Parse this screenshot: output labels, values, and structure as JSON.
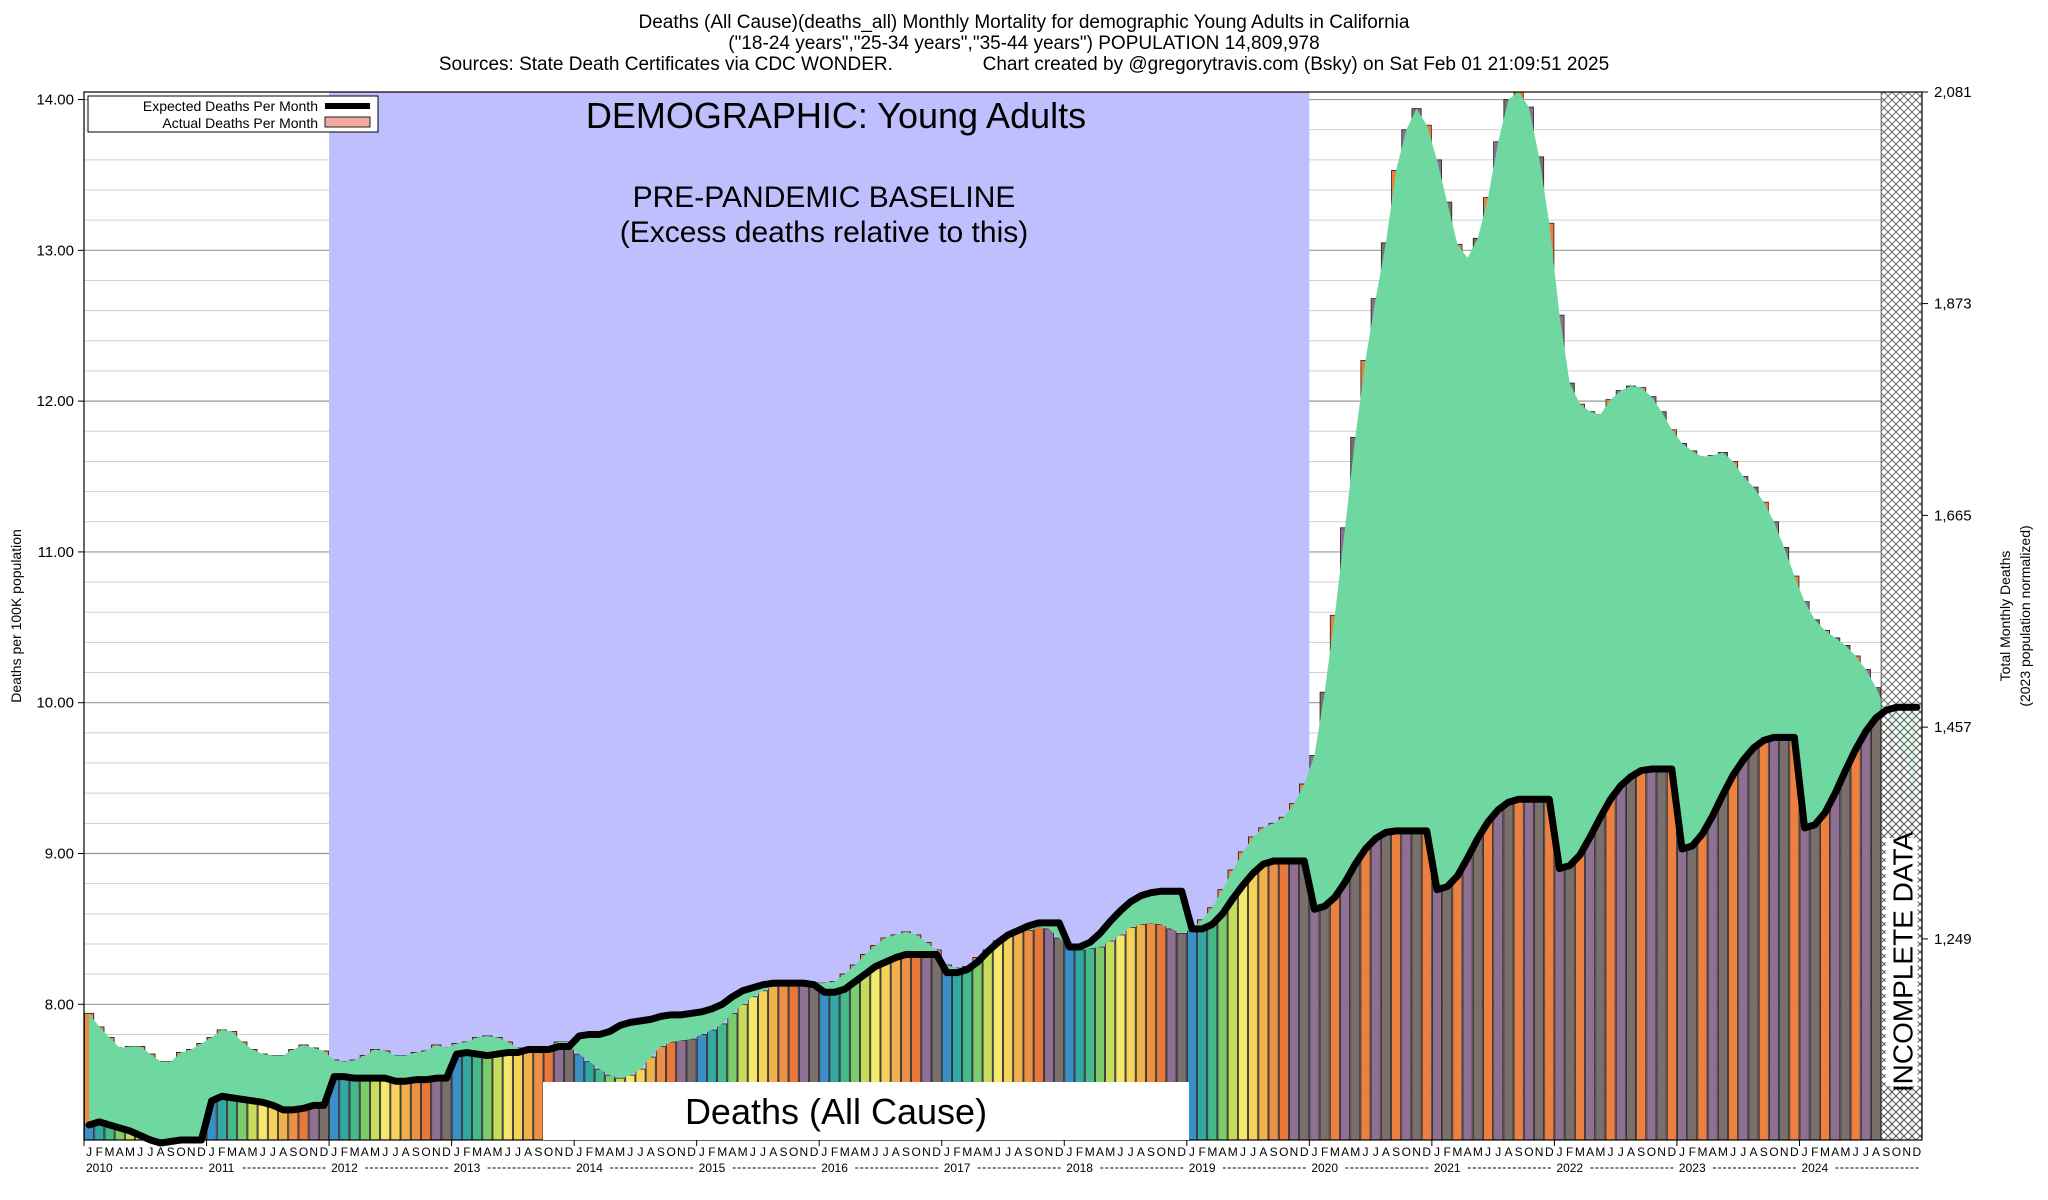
{
  "header": {
    "line1": "Deaths (All Cause)(deaths_all) Monthly Mortality for demographic Young Adults in California",
    "line2": "(\"18-24 years\",\"25-34 years\",\"35-44 years\") POPULATION 14,809,978",
    "line3": "Sources: State Death Certificates via CDC WONDER.                 Chart created by @gregorytravis.com (Bsky) on Sat Feb 01 21:09:51 2025"
  },
  "chart_data": {
    "type": "bar",
    "title": "Deaths (All Cause)(deaths_all) Monthly Mortality for demographic Young Adults in California",
    "ylabel": "Deaths per 100K population",
    "y2label": "Total Monthly Deaths",
    "y2sublabel": "(2023 population normalized)",
    "ylim": [
      7.1,
      14.05
    ],
    "yticks": [
      "8.00",
      "9.00",
      "10.00",
      "11.00",
      "12.00",
      "13.00",
      "14.00"
    ],
    "y2ticks": [
      "1,249",
      "1,457",
      "1,665",
      "1,873",
      "2,081"
    ],
    "years": [
      "2010",
      "2011",
      "2012",
      "2013",
      "2014",
      "2015",
      "2016",
      "2017",
      "2018",
      "2019",
      "2020",
      "2021",
      "2022",
      "2023",
      "2024"
    ],
    "month_labels": [
      "J",
      "F",
      "M",
      "A",
      "M",
      "J",
      "J",
      "A",
      "S",
      "O",
      "N",
      "D"
    ],
    "series": [
      {
        "name": "Actual Deaths Per Month",
        "values": [
          7.94,
          7.85,
          7.78,
          7.71,
          7.72,
          7.72,
          7.67,
          7.62,
          7.62,
          7.68,
          7.7,
          7.74,
          7.78,
          7.83,
          7.82,
          7.75,
          7.7,
          7.67,
          7.66,
          7.66,
          7.7,
          7.73,
          7.71,
          7.69,
          7.63,
          7.62,
          7.63,
          7.66,
          7.7,
          7.69,
          7.66,
          7.66,
          7.68,
          7.69,
          7.73,
          7.71,
          7.74,
          7.75,
          7.78,
          7.79,
          7.78,
          7.75,
          7.71,
          7.69,
          7.7,
          7.72,
          7.75,
          7.75,
          7.67,
          7.62,
          7.57,
          7.53,
          7.51,
          7.53,
          7.57,
          7.65,
          7.72,
          7.75,
          7.76,
          7.77,
          7.8,
          7.83,
          7.87,
          7.94,
          8.0,
          8.05,
          8.09,
          8.12,
          8.14,
          8.15,
          8.15,
          8.14,
          8.14,
          8.15,
          8.2,
          8.26,
          8.33,
          8.39,
          8.44,
          8.46,
          8.48,
          8.46,
          8.41,
          8.36,
          8.26,
          8.24,
          8.25,
          8.31,
          8.36,
          8.42,
          8.46,
          8.48,
          8.49,
          8.51,
          8.5,
          8.44,
          8.4,
          8.36,
          8.37,
          8.38,
          8.42,
          8.46,
          8.51,
          8.53,
          8.54,
          8.53,
          8.5,
          8.47,
          8.5,
          8.56,
          8.64,
          8.76,
          8.89,
          9.01,
          9.11,
          9.17,
          9.2,
          9.24,
          9.33,
          9.46,
          9.65,
          10.07,
          10.58,
          11.16,
          11.76,
          12.27,
          12.68,
          13.05,
          13.53,
          13.8,
          13.94,
          13.83,
          13.6,
          13.32,
          13.04,
          12.95,
          13.08,
          13.35,
          13.72,
          14.0,
          14.12,
          13.95,
          13.62,
          13.18,
          12.57,
          12.12,
          11.98,
          11.93,
          11.91,
          12.01,
          12.07,
          12.1,
          12.09,
          12.03,
          11.93,
          11.81,
          11.72,
          11.67,
          11.63,
          11.64,
          11.66,
          11.6,
          11.5,
          11.43,
          11.33,
          11.2,
          11.03,
          10.84,
          10.67,
          10.55,
          10.48,
          10.43,
          10.38,
          10.31,
          10.22,
          10.1,
          9.95,
          9.79,
          9.58,
          9.3
        ]
      },
      {
        "name": "Expected Deaths Per Month",
        "values": [
          7.2,
          7.22,
          7.2,
          7.18,
          7.16,
          7.13,
          7.1,
          7.08,
          7.09,
          7.1,
          7.1,
          7.1,
          7.36,
          7.39,
          7.38,
          7.37,
          7.36,
          7.35,
          7.33,
          7.3,
          7.3,
          7.31,
          7.33,
          7.33,
          7.52,
          7.52,
          7.51,
          7.51,
          7.51,
          7.51,
          7.49,
          7.49,
          7.5,
          7.5,
          7.51,
          7.51,
          7.67,
          7.68,
          7.67,
          7.66,
          7.67,
          7.68,
          7.68,
          7.7,
          7.7,
          7.7,
          7.72,
          7.72,
          7.79,
          7.8,
          7.8,
          7.82,
          7.86,
          7.88,
          7.89,
          7.9,
          7.92,
          7.93,
          7.93,
          7.94,
          7.95,
          7.97,
          8.0,
          8.05,
          8.09,
          8.11,
          8.13,
          8.14,
          8.14,
          8.14,
          8.14,
          8.13,
          8.08,
          8.08,
          8.1,
          8.15,
          8.2,
          8.25,
          8.28,
          8.31,
          8.33,
          8.33,
          8.33,
          8.33,
          8.21,
          8.21,
          8.23,
          8.28,
          8.35,
          8.41,
          8.46,
          8.49,
          8.52,
          8.54,
          8.54,
          8.54,
          8.38,
          8.38,
          8.41,
          8.47,
          8.55,
          8.62,
          8.68,
          8.72,
          8.74,
          8.75,
          8.75,
          8.75,
          8.5,
          8.5,
          8.53,
          8.6,
          8.7,
          8.79,
          8.87,
          8.93,
          8.95,
          8.95,
          8.95,
          8.95,
          8.63,
          8.65,
          8.71,
          8.81,
          8.93,
          9.03,
          9.1,
          9.14,
          9.15,
          9.15,
          9.15,
          9.15,
          8.76,
          8.78,
          8.85,
          8.97,
          9.1,
          9.21,
          9.29,
          9.34,
          9.36,
          9.36,
          9.36,
          9.36,
          8.9,
          8.92,
          8.99,
          9.11,
          9.24,
          9.36,
          9.45,
          9.51,
          9.55,
          9.56,
          9.56,
          9.56,
          9.03,
          9.05,
          9.13,
          9.25,
          9.39,
          9.52,
          9.62,
          9.7,
          9.75,
          9.77,
          9.77,
          9.77,
          9.17,
          9.19,
          9.27,
          9.4,
          9.55,
          9.69,
          9.81,
          9.9,
          9.95,
          9.97,
          9.97,
          9.97
        ]
      }
    ],
    "incomplete_months": 4,
    "legend": [
      "Expected Deaths Per Month",
      "Actual Deaths Per Month"
    ],
    "legend_position": "top-left",
    "annotations": {
      "demographic": "DEMOGRAPHIC: Young Adults",
      "baseline_line1": "PRE-PANDEMIC BASELINE",
      "baseline_line2": "(Excess deaths relative to this)",
      "deaths_label": "Deaths (All Cause)",
      "incomplete": "INCOMPLETE DATA"
    },
    "colors": {
      "baseline_band": "#bfbffd",
      "expected_line": "#000000",
      "actual_fill": "#f4a8a0",
      "excess_fill": "#6fd8a0",
      "bar_palette": [
        "#3b8fc7",
        "#33a8a2",
        "#45b98a",
        "#7ccc6c",
        "#c8dc5c",
        "#f5e86a",
        "#f5d25a",
        "#f0b04a",
        "#ec9045",
        "#e8773a",
        "#8f6f92",
        "#7a6f6a"
      ]
    }
  }
}
